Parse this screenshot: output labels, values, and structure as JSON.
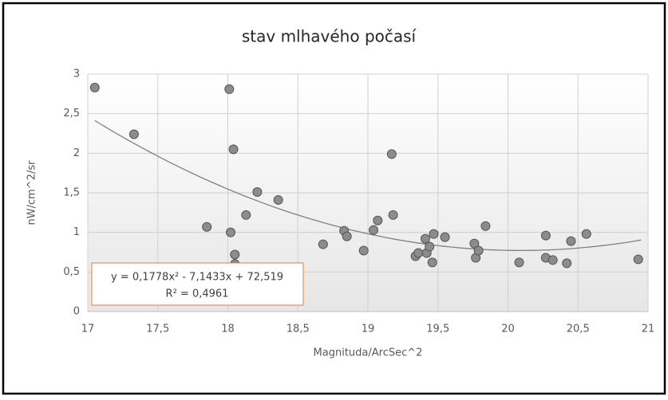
{
  "chart_data": {
    "type": "scatter",
    "title": "stav mlhavého počasí",
    "xlabel": "Magnituda/ArcSec^2",
    "ylabel": "nW/cm^2/sr",
    "xlim": [
      17,
      21
    ],
    "ylim": [
      0,
      3
    ],
    "xticks": [
      17,
      {
        "value": 17.5,
        "label": "17,5"
      },
      18,
      {
        "value": 18.5,
        "label": "18,5"
      },
      19,
      {
        "value": 19.5,
        "label": "19,5"
      },
      20,
      {
        "value": 20.5,
        "label": "20,5"
      },
      21
    ],
    "yticks": [
      0,
      {
        "value": 0.5,
        "label": "0,5"
      },
      1,
      {
        "value": 1.5,
        "label": "1,5"
      },
      2,
      {
        "value": 2.5,
        "label": "2,5"
      },
      3
    ],
    "grid": true,
    "series": [
      {
        "color": "#8c8c8c",
        "x": [
          17.05,
          17.33,
          17.85,
          18.01,
          18.02,
          18.04,
          18.05,
          18.05,
          18.13,
          18.21,
          18.36,
          18.68,
          18.83,
          18.85,
          18.97,
          19.04,
          19.07,
          19.17,
          19.18,
          19.34,
          19.36,
          19.41,
          19.42,
          19.44,
          19.46,
          19.47,
          19.55,
          19.76,
          19.77,
          19.79,
          19.84,
          20.08,
          20.27,
          20.27,
          20.32,
          20.42,
          20.45,
          20.56,
          20.93
        ],
        "values": [
          2.83,
          2.24,
          1.07,
          2.81,
          1.0,
          2.05,
          0.72,
          0.6,
          1.22,
          1.51,
          1.41,
          0.85,
          1.02,
          0.95,
          0.77,
          1.03,
          1.15,
          1.99,
          1.22,
          0.7,
          0.74,
          0.92,
          0.74,
          0.82,
          0.62,
          0.98,
          0.94,
          0.86,
          0.68,
          0.77,
          1.08,
          0.62,
          0.68,
          0.96,
          0.65,
          0.61,
          0.89,
          0.98,
          0.66
        ]
      }
    ],
    "trendline": {
      "type": "polynomial",
      "color": "#808080",
      "coefficients": [
        0.1778,
        -7.1433,
        72.519
      ],
      "equation": "y = 0,1778x² - 7,1433x + 72,519",
      "r2": "R² = 0,4961"
    }
  }
}
